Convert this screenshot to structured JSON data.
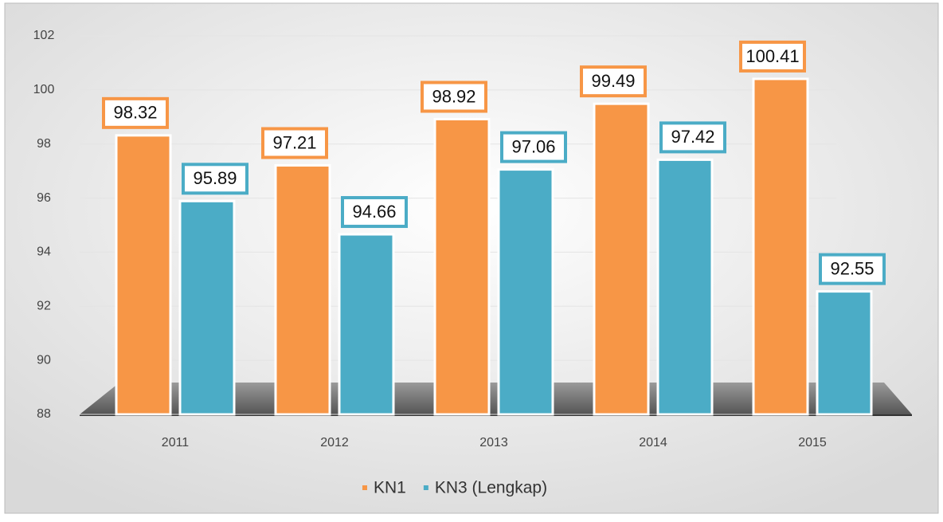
{
  "chart_data": {
    "type": "bar",
    "categories": [
      "2011",
      "2012",
      "2013",
      "2014",
      "2015"
    ],
    "series": [
      {
        "name": "KN1",
        "color": "#f79646",
        "values": [
          98.32,
          97.21,
          98.92,
          99.49,
          100.41
        ]
      },
      {
        "name": "KN3 (Lengkap)",
        "color": "#4bacc6",
        "values": [
          95.89,
          94.66,
          97.06,
          97.42,
          92.55
        ]
      }
    ],
    "ylim": [
      88,
      102
    ],
    "yticks": [
      88,
      90,
      92,
      94,
      96,
      98,
      100,
      102
    ],
    "grid": true
  }
}
